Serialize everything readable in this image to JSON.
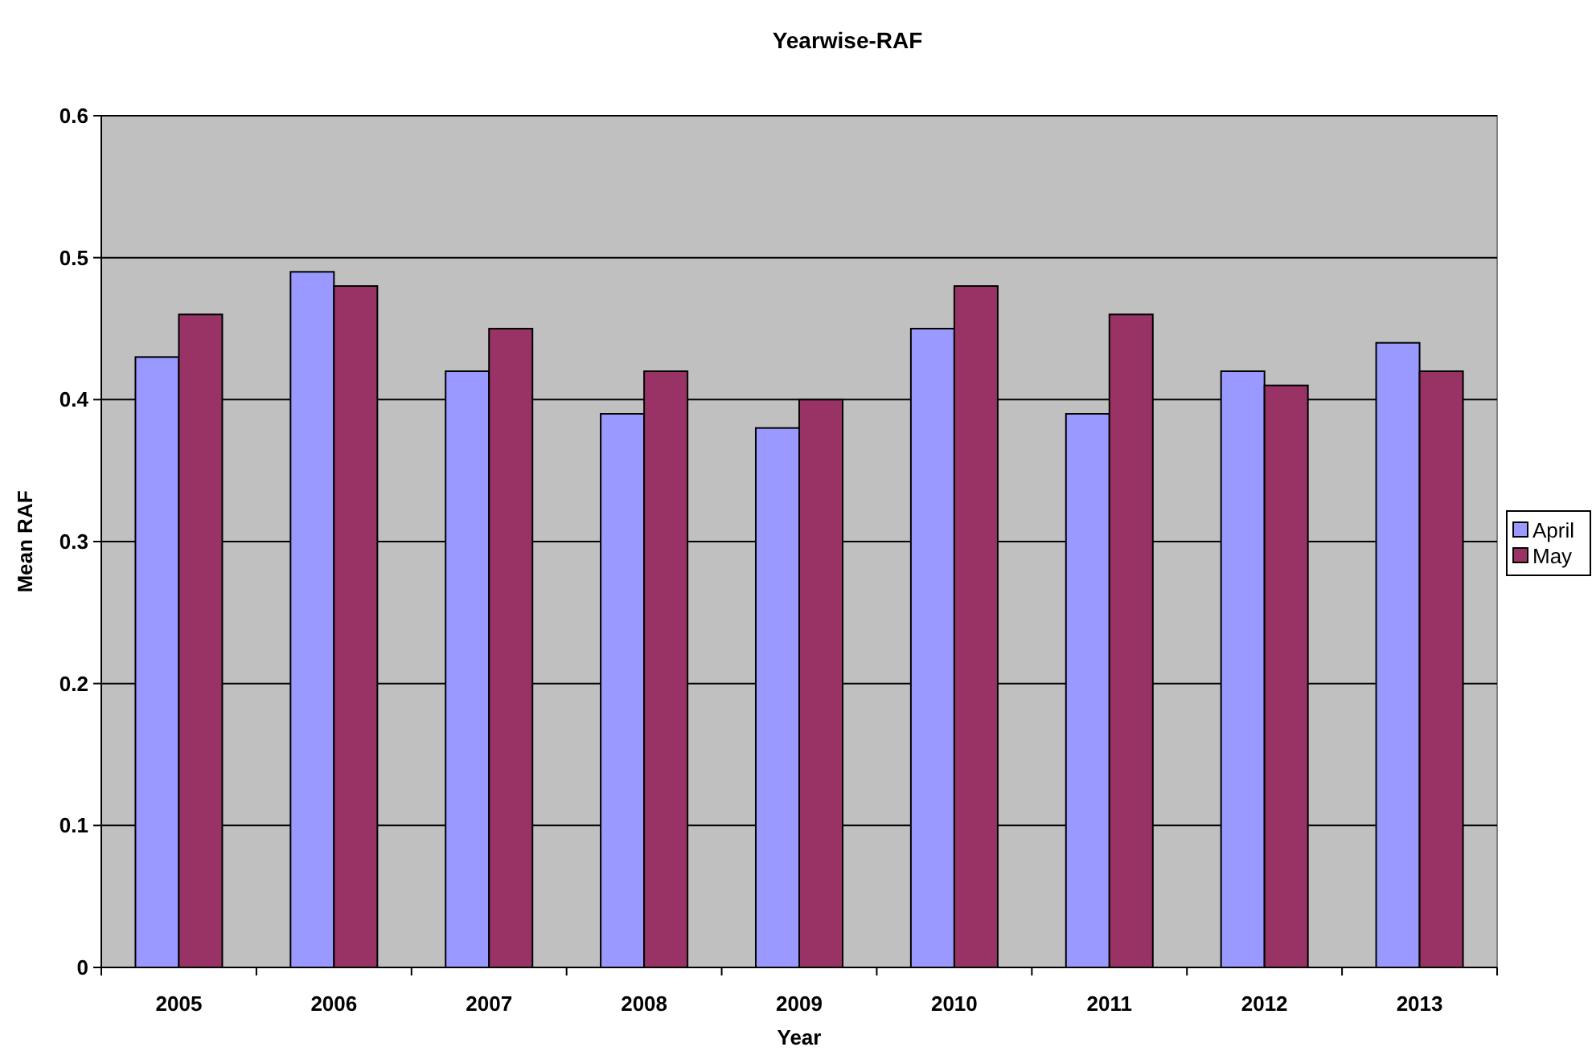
{
  "chart_data": {
    "type": "bar",
    "title": "Yearwise-RAF",
    "xlabel": "Year",
    "ylabel": "Mean RAF",
    "categories": [
      "2005",
      "2006",
      "2007",
      "2008",
      "2009",
      "2010",
      "2011",
      "2012",
      "2013"
    ],
    "series": [
      {
        "name": "April",
        "color": "#9999ff",
        "values": [
          0.43,
          0.49,
          0.42,
          0.39,
          0.38,
          0.45,
          0.39,
          0.42,
          0.44
        ]
      },
      {
        "name": "May",
        "color": "#993366",
        "values": [
          0.46,
          0.48,
          0.45,
          0.42,
          0.4,
          0.48,
          0.46,
          0.41,
          0.42
        ]
      }
    ],
    "ylim": [
      0,
      0.6
    ],
    "yticks": [
      0,
      0.1,
      0.2,
      0.3,
      0.4,
      0.5,
      0.6
    ],
    "grid": "y",
    "legend": "right"
  }
}
